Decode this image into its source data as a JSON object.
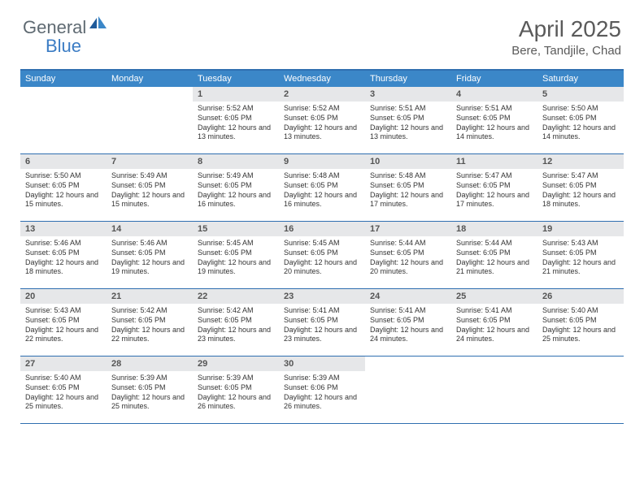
{
  "logo": {
    "text_gray": "General",
    "text_blue": "Blue"
  },
  "title": "April 2025",
  "location": "Bere, Tandjile, Chad",
  "colors": {
    "header_bg": "#3b87c8",
    "border": "#2f6fb0",
    "daynum_bg": "#e6e7e9",
    "text": "#333333",
    "logo_gray": "#5f6a72",
    "logo_blue": "#3b7cc4"
  },
  "day_headers": [
    "Sunday",
    "Monday",
    "Tuesday",
    "Wednesday",
    "Thursday",
    "Friday",
    "Saturday"
  ],
  "weeks": [
    [
      {
        "empty": true
      },
      {
        "empty": true
      },
      {
        "num": "1",
        "sunrise": "5:52 AM",
        "sunset": "6:05 PM",
        "daylight": "12 hours and 13 minutes."
      },
      {
        "num": "2",
        "sunrise": "5:52 AM",
        "sunset": "6:05 PM",
        "daylight": "12 hours and 13 minutes."
      },
      {
        "num": "3",
        "sunrise": "5:51 AM",
        "sunset": "6:05 PM",
        "daylight": "12 hours and 13 minutes."
      },
      {
        "num": "4",
        "sunrise": "5:51 AM",
        "sunset": "6:05 PM",
        "daylight": "12 hours and 14 minutes."
      },
      {
        "num": "5",
        "sunrise": "5:50 AM",
        "sunset": "6:05 PM",
        "daylight": "12 hours and 14 minutes."
      }
    ],
    [
      {
        "num": "6",
        "sunrise": "5:50 AM",
        "sunset": "6:05 PM",
        "daylight": "12 hours and 15 minutes."
      },
      {
        "num": "7",
        "sunrise": "5:49 AM",
        "sunset": "6:05 PM",
        "daylight": "12 hours and 15 minutes."
      },
      {
        "num": "8",
        "sunrise": "5:49 AM",
        "sunset": "6:05 PM",
        "daylight": "12 hours and 16 minutes."
      },
      {
        "num": "9",
        "sunrise": "5:48 AM",
        "sunset": "6:05 PM",
        "daylight": "12 hours and 16 minutes."
      },
      {
        "num": "10",
        "sunrise": "5:48 AM",
        "sunset": "6:05 PM",
        "daylight": "12 hours and 17 minutes."
      },
      {
        "num": "11",
        "sunrise": "5:47 AM",
        "sunset": "6:05 PM",
        "daylight": "12 hours and 17 minutes."
      },
      {
        "num": "12",
        "sunrise": "5:47 AM",
        "sunset": "6:05 PM",
        "daylight": "12 hours and 18 minutes."
      }
    ],
    [
      {
        "num": "13",
        "sunrise": "5:46 AM",
        "sunset": "6:05 PM",
        "daylight": "12 hours and 18 minutes."
      },
      {
        "num": "14",
        "sunrise": "5:46 AM",
        "sunset": "6:05 PM",
        "daylight": "12 hours and 19 minutes."
      },
      {
        "num": "15",
        "sunrise": "5:45 AM",
        "sunset": "6:05 PM",
        "daylight": "12 hours and 19 minutes."
      },
      {
        "num": "16",
        "sunrise": "5:45 AM",
        "sunset": "6:05 PM",
        "daylight": "12 hours and 20 minutes."
      },
      {
        "num": "17",
        "sunrise": "5:44 AM",
        "sunset": "6:05 PM",
        "daylight": "12 hours and 20 minutes."
      },
      {
        "num": "18",
        "sunrise": "5:44 AM",
        "sunset": "6:05 PM",
        "daylight": "12 hours and 21 minutes."
      },
      {
        "num": "19",
        "sunrise": "5:43 AM",
        "sunset": "6:05 PM",
        "daylight": "12 hours and 21 minutes."
      }
    ],
    [
      {
        "num": "20",
        "sunrise": "5:43 AM",
        "sunset": "6:05 PM",
        "daylight": "12 hours and 22 minutes."
      },
      {
        "num": "21",
        "sunrise": "5:42 AM",
        "sunset": "6:05 PM",
        "daylight": "12 hours and 22 minutes."
      },
      {
        "num": "22",
        "sunrise": "5:42 AM",
        "sunset": "6:05 PM",
        "daylight": "12 hours and 23 minutes."
      },
      {
        "num": "23",
        "sunrise": "5:41 AM",
        "sunset": "6:05 PM",
        "daylight": "12 hours and 23 minutes."
      },
      {
        "num": "24",
        "sunrise": "5:41 AM",
        "sunset": "6:05 PM",
        "daylight": "12 hours and 24 minutes."
      },
      {
        "num": "25",
        "sunrise": "5:41 AM",
        "sunset": "6:05 PM",
        "daylight": "12 hours and 24 minutes."
      },
      {
        "num": "26",
        "sunrise": "5:40 AM",
        "sunset": "6:05 PM",
        "daylight": "12 hours and 25 minutes."
      }
    ],
    [
      {
        "num": "27",
        "sunrise": "5:40 AM",
        "sunset": "6:05 PM",
        "daylight": "12 hours and 25 minutes."
      },
      {
        "num": "28",
        "sunrise": "5:39 AM",
        "sunset": "6:05 PM",
        "daylight": "12 hours and 25 minutes."
      },
      {
        "num": "29",
        "sunrise": "5:39 AM",
        "sunset": "6:05 PM",
        "daylight": "12 hours and 26 minutes."
      },
      {
        "num": "30",
        "sunrise": "5:39 AM",
        "sunset": "6:06 PM",
        "daylight": "12 hours and 26 minutes."
      },
      {
        "empty": true
      },
      {
        "empty": true
      },
      {
        "empty": true
      }
    ]
  ]
}
